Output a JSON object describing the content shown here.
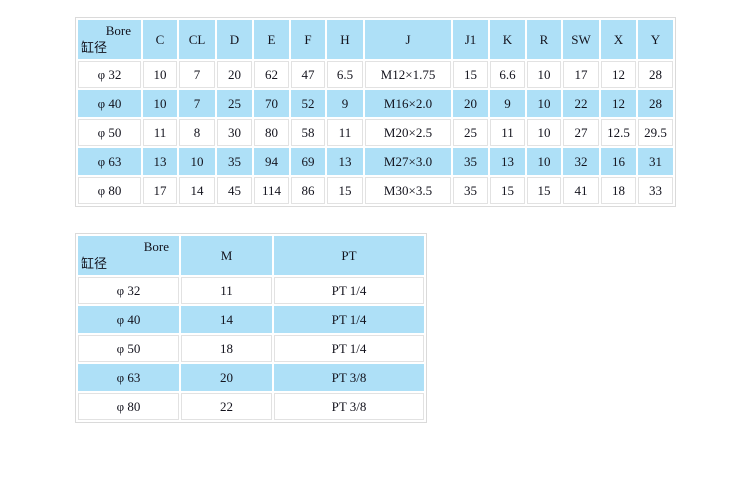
{
  "colors": {
    "row_blue": "#aee0f7",
    "row_white": "#ffffff",
    "grid_line": "#e2e2e2",
    "text": "#13131d"
  },
  "tables": {
    "dimensions": {
      "corner": {
        "en": "Bore",
        "cn": "缸径"
      },
      "headers": [
        "C",
        "CL",
        "D",
        "E",
        "F",
        "H",
        "J",
        "J1",
        "K",
        "R",
        "SW",
        "X",
        "Y"
      ],
      "rows": [
        [
          "φ 32",
          "10",
          "7",
          "20",
          "62",
          "47",
          "6.5",
          "M12×1.75",
          "15",
          "6.6",
          "10",
          "17",
          "12",
          "28"
        ],
        [
          "φ 40",
          "10",
          "7",
          "25",
          "70",
          "52",
          "9",
          "M16×2.0",
          "20",
          "9",
          "10",
          "22",
          "12",
          "28"
        ],
        [
          "φ 50",
          "11",
          "8",
          "30",
          "80",
          "58",
          "11",
          "M20×2.5",
          "25",
          "11",
          "10",
          "27",
          "12.5",
          "29.5"
        ],
        [
          "φ 63",
          "13",
          "10",
          "35",
          "94",
          "69",
          "13",
          "M27×3.0",
          "35",
          "13",
          "10",
          "32",
          "16",
          "31"
        ],
        [
          "φ 80",
          "17",
          "14",
          "45",
          "114",
          "86",
          "15",
          "M30×3.5",
          "35",
          "15",
          "15",
          "41",
          "18",
          "33"
        ]
      ]
    },
    "ports": {
      "corner": {
        "en": "Bore",
        "cn": "缸径"
      },
      "headers": [
        "M",
        "PT"
      ],
      "rows": [
        [
          "φ 32",
          "11",
          "PT 1/4"
        ],
        [
          "φ 40",
          "14",
          "PT 1/4"
        ],
        [
          "φ 50",
          "18",
          "PT 1/4"
        ],
        [
          "φ 63",
          "20",
          "PT 3/8"
        ],
        [
          "φ 80",
          "22",
          "PT 3/8"
        ]
      ]
    }
  }
}
